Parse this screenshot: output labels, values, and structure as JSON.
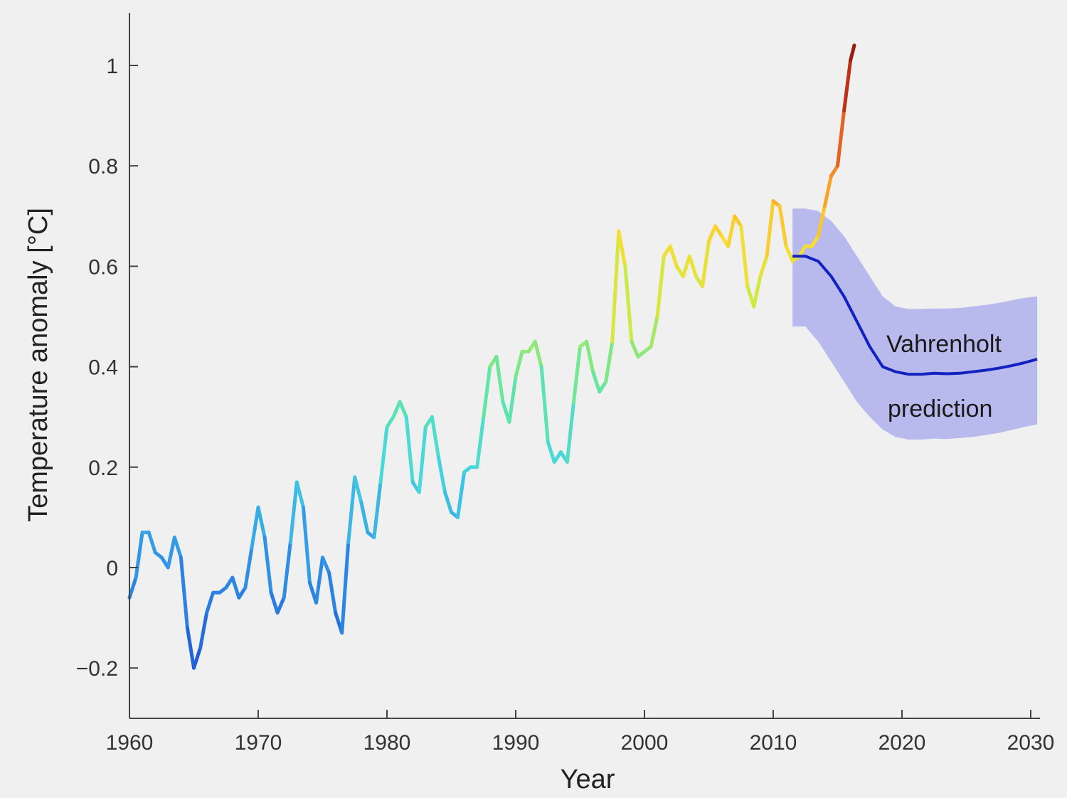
{
  "chart_data": {
    "type": "line",
    "title": "",
    "xlabel": "Year",
    "ylabel": "Temperature anomaly [°C]",
    "xlim": [
      1960,
      2031
    ],
    "ylim": [
      -0.3,
      1.1
    ],
    "xticks": [
      1960,
      1970,
      1980,
      1990,
      2000,
      2010,
      2020,
      2030
    ],
    "xtick_labels": [
      "1960",
      "1970",
      "1980",
      "1990",
      "2000",
      "2010",
      "2020",
      "2030"
    ],
    "yticks": [
      -0.2,
      0,
      0.2,
      0.4,
      0.6,
      0.8,
      1
    ],
    "ytick_labels": [
      "−0.2",
      "0",
      "0.2",
      "0.4",
      "0.6",
      "0.8",
      "1"
    ],
    "grid": false,
    "series": [
      {
        "role": "observed temperature anomaly",
        "color_scale": "jet (blue → cyan → yellow → red, by value)",
        "x": [
          1960.0,
          1960.5,
          1961.0,
          1961.5,
          1962.0,
          1962.5,
          1963.0,
          1963.5,
          1964.0,
          1964.5,
          1965.0,
          1965.5,
          1966.0,
          1966.5,
          1967.0,
          1967.5,
          1968.0,
          1968.5,
          1969.0,
          1969.5,
          1970.0,
          1970.5,
          1971.0,
          1971.5,
          1972.0,
          1972.5,
          1973.0,
          1973.5,
          1974.0,
          1974.5,
          1975.0,
          1975.5,
          1976.0,
          1976.5,
          1977.0,
          1977.5,
          1978.0,
          1978.5,
          1979.0,
          1979.5,
          1980.0,
          1980.5,
          1981.0,
          1981.5,
          1982.0,
          1982.5,
          1983.0,
          1983.5,
          1984.0,
          1984.5,
          1985.0,
          1985.5,
          1986.0,
          1986.5,
          1987.0,
          1987.5,
          1988.0,
          1988.5,
          1989.0,
          1989.5,
          1990.0,
          1990.5,
          1991.0,
          1991.5,
          1992.0,
          1992.5,
          1993.0,
          1993.5,
          1994.0,
          1994.5,
          1995.0,
          1995.5,
          1996.0,
          1996.5,
          1997.0,
          1997.5,
          1998.0,
          1998.5,
          1999.0,
          1999.5,
          2000.0,
          2000.5,
          2001.0,
          2001.5,
          2002.0,
          2002.5,
          2003.0,
          2003.5,
          2004.0,
          2004.5,
          2005.0,
          2005.5,
          2006.0,
          2006.5,
          2007.0,
          2007.5,
          2008.0,
          2008.5,
          2009.0,
          2009.5,
          2010.0,
          2010.5,
          2011.0,
          2011.5,
          2012.0,
          2012.5,
          2013.0,
          2013.5,
          2014.0,
          2014.5,
          2015.0,
          2015.5,
          2016.0,
          2016.3
        ],
        "y": [
          -0.06,
          -0.02,
          0.07,
          0.07,
          0.03,
          0.02,
          0.0,
          0.06,
          0.02,
          -0.12,
          -0.2,
          -0.16,
          -0.09,
          -0.05,
          -0.05,
          -0.04,
          -0.02,
          -0.06,
          -0.04,
          0.04,
          0.12,
          0.06,
          -0.05,
          -0.09,
          -0.06,
          0.05,
          0.17,
          0.12,
          -0.03,
          -0.07,
          0.02,
          -0.01,
          -0.09,
          -0.13,
          0.05,
          0.18,
          0.13,
          0.07,
          0.06,
          0.17,
          0.28,
          0.3,
          0.33,
          0.3,
          0.17,
          0.15,
          0.28,
          0.3,
          0.22,
          0.15,
          0.11,
          0.1,
          0.19,
          0.2,
          0.2,
          0.3,
          0.4,
          0.42,
          0.33,
          0.29,
          0.38,
          0.43,
          0.43,
          0.45,
          0.4,
          0.25,
          0.21,
          0.23,
          0.21,
          0.33,
          0.44,
          0.45,
          0.39,
          0.35,
          0.37,
          0.45,
          0.67,
          0.6,
          0.45,
          0.42,
          0.43,
          0.44,
          0.5,
          0.62,
          0.64,
          0.6,
          0.58,
          0.62,
          0.58,
          0.56,
          0.65,
          0.68,
          0.66,
          0.64,
          0.7,
          0.68,
          0.56,
          0.52,
          0.58,
          0.62,
          0.73,
          0.72,
          0.64,
          0.61,
          0.62,
          0.64,
          0.64,
          0.66,
          0.72,
          0.78,
          0.8,
          0.91,
          1.01,
          1.04
        ]
      },
      {
        "name": "Vahrenholt prediction",
        "role": "prediction with uncertainty band",
        "color": "#1222c0",
        "band_color": "#b8b9ec",
        "x": [
          2011.5,
          2012.5,
          2013.5,
          2014.5,
          2015.5,
          2016.5,
          2017.5,
          2018.5,
          2019.5,
          2020.5,
          2021.5,
          2022.5,
          2023.5,
          2024.5,
          2025.5,
          2026.5,
          2027.5,
          2028.5,
          2029.5,
          2030.5
        ],
        "y": [
          0.62,
          0.62,
          0.61,
          0.58,
          0.54,
          0.49,
          0.44,
          0.4,
          0.39,
          0.385,
          0.385,
          0.387,
          0.386,
          0.387,
          0.39,
          0.393,
          0.397,
          0.402,
          0.408,
          0.415
        ],
        "upper": [
          0.715,
          0.715,
          0.71,
          0.69,
          0.66,
          0.62,
          0.58,
          0.54,
          0.52,
          0.515,
          0.515,
          0.516,
          0.516,
          0.517,
          0.52,
          0.523,
          0.527,
          0.532,
          0.537,
          0.54
        ],
        "lower": [
          0.48,
          0.48,
          0.45,
          0.41,
          0.37,
          0.33,
          0.3,
          0.275,
          0.26,
          0.255,
          0.255,
          0.257,
          0.256,
          0.258,
          0.26,
          0.264,
          0.268,
          0.274,
          0.28,
          0.285
        ]
      }
    ],
    "annotations": [
      "Vahrenholt",
      "prediction"
    ]
  }
}
